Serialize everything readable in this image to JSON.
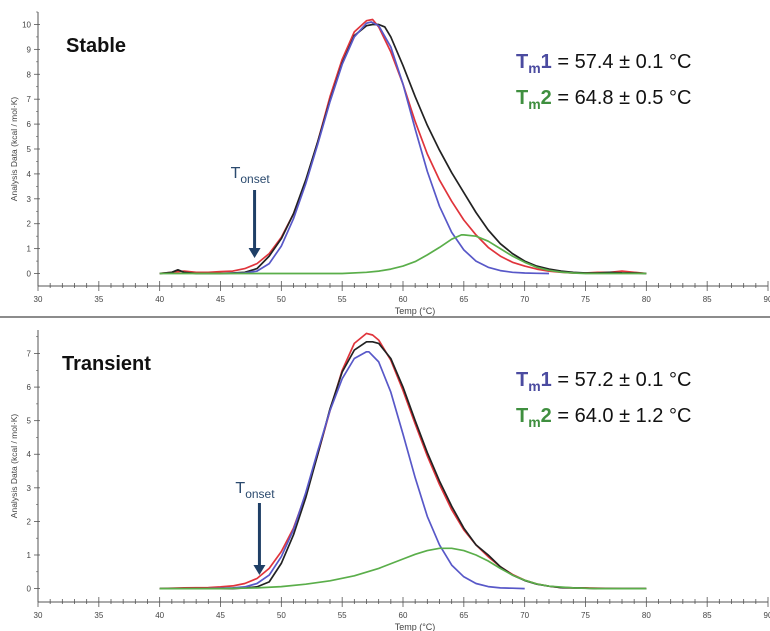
{
  "chart_data": [
    {
      "type": "line",
      "panel_label": "Stable",
      "xlabel": "Temp (°C)",
      "ylabel": "Analysis Data (kcal / mol·K)",
      "xlim": [
        30,
        90
      ],
      "ylim": [
        -0.5,
        10.5
      ],
      "x_ticks": [
        "30",
        "35",
        "40",
        "45",
        "50",
        "55",
        "60",
        "65",
        "70",
        "75",
        "80",
        "85",
        "90"
      ],
      "y_ticks": [
        "0",
        "1",
        "2",
        "3",
        "4",
        "5",
        "6",
        "7",
        "8",
        "9",
        "10"
      ],
      "tm1": {
        "label_main": "T",
        "label_sub": "m",
        "label_num": "1",
        "text": " = 57.4 ± 0.1 °C",
        "color": "#4b4ba0"
      },
      "tm2": {
        "label_main": "T",
        "label_sub": "m",
        "label_num": "2",
        "text": " = 64.8 ± 0.5 °C",
        "color": "#3f8f3f"
      },
      "onset": {
        "label_main": "T",
        "label_sub": "onset",
        "x": 47.8
      },
      "series": [
        {
          "color": "#e0343b",
          "x": [
            40,
            41,
            42,
            43,
            44,
            45,
            46,
            47,
            48,
            49,
            50,
            51,
            52,
            53,
            54,
            55,
            56,
            57,
            57.5,
            58,
            59,
            60,
            61,
            62,
            63,
            64,
            65,
            66,
            67,
            68,
            69,
            70,
            71,
            72,
            73,
            74,
            75,
            76,
            77,
            78,
            79,
            80
          ],
          "y": [
            0,
            0.05,
            0.1,
            0.05,
            0.05,
            0.08,
            0.1,
            0.2,
            0.4,
            0.8,
            1.45,
            2.4,
            3.7,
            5.3,
            7.1,
            8.6,
            9.7,
            10.15,
            10.2,
            9.9,
            8.9,
            7.6,
            6.1,
            4.8,
            3.75,
            2.9,
            2.15,
            1.55,
            1.05,
            0.7,
            0.45,
            0.3,
            0.18,
            0.1,
            0.05,
            0.02,
            0.02,
            0.05,
            0.05,
            0.1,
            0.05,
            0.0
          ]
        },
        {
          "color": "#222222",
          "x": [
            40,
            41,
            41.5,
            42,
            43,
            44,
            45,
            46,
            47,
            48,
            49,
            50,
            51,
            52,
            53,
            54,
            55,
            56,
            57,
            57.5,
            58,
            58.5,
            59,
            60,
            61,
            62,
            63,
            64,
            65,
            66,
            67,
            68,
            69,
            70,
            71,
            72,
            73,
            74,
            75,
            76,
            77,
            78,
            79,
            80
          ],
          "y": [
            0,
            0.05,
            0.15,
            0.05,
            0,
            0,
            0,
            0.02,
            0.05,
            0.2,
            0.7,
            1.4,
            2.4,
            3.75,
            5.3,
            6.95,
            8.45,
            9.55,
            9.95,
            10.0,
            10.0,
            9.9,
            9.5,
            8.35,
            7.1,
            5.95,
            4.95,
            4.05,
            3.25,
            2.45,
            1.75,
            1.2,
            0.8,
            0.5,
            0.3,
            0.18,
            0.1,
            0.05,
            0.02,
            0.02,
            0.05,
            0.03,
            0.02,
            0.0
          ]
        },
        {
          "color": "#5858c8",
          "x": [
            45,
            47,
            48,
            49,
            50,
            51,
            52,
            53,
            54,
            55,
            56,
            57,
            57.4,
            58,
            59,
            60,
            61,
            62,
            63,
            64,
            65,
            66,
            67,
            68,
            69,
            70,
            71,
            72
          ],
          "y": [
            0,
            0.02,
            0.1,
            0.4,
            1.1,
            2.2,
            3.6,
            5.2,
            6.9,
            8.4,
            9.5,
            10.05,
            10.1,
            9.95,
            9.1,
            7.6,
            5.8,
            4.1,
            2.7,
            1.65,
            0.95,
            0.5,
            0.25,
            0.12,
            0.05,
            0.02,
            0.01,
            0.0
          ]
        },
        {
          "color": "#5aae4a",
          "x": [
            40,
            48,
            52,
            55,
            57,
            58,
            59,
            60,
            61,
            62,
            63,
            64,
            64.8,
            65,
            66,
            67,
            68,
            69,
            70,
            71,
            72,
            73,
            74,
            75,
            80
          ],
          "y": [
            0,
            0,
            0,
            0,
            0.05,
            0.1,
            0.18,
            0.3,
            0.48,
            0.75,
            1.05,
            1.38,
            1.55,
            1.55,
            1.5,
            1.3,
            1.0,
            0.7,
            0.45,
            0.25,
            0.13,
            0.06,
            0.02,
            0.0,
            0.0
          ]
        }
      ]
    },
    {
      "type": "line",
      "panel_label": "Transient",
      "xlabel": "Temp (°C)",
      "ylabel": "Analysis Data (kcal / mol·K)",
      "xlim": [
        30,
        90
      ],
      "ylim": [
        -0.4,
        7.7
      ],
      "x_ticks": [
        "30",
        "35",
        "40",
        "45",
        "50",
        "55",
        "60",
        "65",
        "70",
        "75",
        "80",
        "85",
        "90"
      ],
      "y_ticks": [
        "0",
        "1",
        "2",
        "3",
        "4",
        "5",
        "6",
        "7"
      ],
      "tm1": {
        "label_main": "T",
        "label_sub": "m",
        "label_num": "1",
        "text": " = 57.2 ± 0.1 °C",
        "color": "#4b4ba0"
      },
      "tm2": {
        "label_main": "T",
        "label_sub": "m",
        "label_num": "2",
        "text": " = 64.0 ± 1.2 °C",
        "color": "#3f8f3f"
      },
      "onset": {
        "label_main": "T",
        "label_sub": "onset",
        "x": 48.2
      },
      "series": [
        {
          "color": "#e0343b",
          "x": [
            40,
            42,
            44,
            45,
            46,
            47,
            48,
            49,
            50,
            51,
            52,
            53,
            54,
            55,
            56,
            57,
            57.5,
            58,
            59,
            60,
            61,
            62,
            63,
            64,
            65,
            66,
            67,
            68,
            69,
            70,
            71,
            72,
            73,
            74,
            75,
            76,
            78,
            80
          ],
          "y": [
            0,
            0.02,
            0.03,
            0.05,
            0.08,
            0.15,
            0.3,
            0.6,
            1.1,
            1.8,
            2.8,
            4.0,
            5.3,
            6.5,
            7.3,
            7.6,
            7.55,
            7.4,
            6.8,
            5.9,
            4.9,
            3.95,
            3.1,
            2.35,
            1.75,
            1.3,
            0.95,
            0.65,
            0.42,
            0.25,
            0.14,
            0.07,
            0.03,
            0.02,
            0.02,
            0.01,
            0.0,
            0.0
          ]
        },
        {
          "color": "#222222",
          "x": [
            40,
            42,
            44,
            46,
            47,
            48,
            49,
            50,
            51,
            52,
            53,
            54,
            55,
            56,
            57,
            57.5,
            58,
            59,
            60,
            61,
            62,
            63,
            64,
            65,
            66,
            67,
            68,
            69,
            70,
            71,
            72,
            73,
            74,
            75,
            76,
            78,
            80
          ],
          "y": [
            0,
            0,
            0,
            0,
            0.02,
            0.05,
            0.2,
            0.75,
            1.6,
            2.7,
            4.0,
            5.35,
            6.45,
            7.1,
            7.35,
            7.35,
            7.3,
            6.85,
            6.0,
            5.0,
            4.05,
            3.2,
            2.45,
            1.8,
            1.3,
            1.0,
            0.65,
            0.4,
            0.24,
            0.13,
            0.07,
            0.03,
            0.02,
            0.01,
            0.0,
            0.0,
            0.0
          ]
        },
        {
          "color": "#5858c8",
          "x": [
            44,
            46,
            47,
            48,
            49,
            50,
            51,
            52,
            53,
            54,
            55,
            56,
            57,
            57.2,
            58,
            59,
            60,
            61,
            62,
            63,
            64,
            65,
            66,
            67,
            68,
            69,
            70
          ],
          "y": [
            0,
            0.02,
            0.05,
            0.15,
            0.4,
            0.95,
            1.75,
            2.85,
            4.1,
            5.3,
            6.25,
            6.85,
            7.05,
            7.05,
            6.75,
            5.85,
            4.6,
            3.3,
            2.15,
            1.3,
            0.7,
            0.35,
            0.15,
            0.06,
            0.02,
            0.01,
            0.0
          ]
        },
        {
          "color": "#5aae4a",
          "x": [
            40,
            45,
            48,
            50,
            52,
            54,
            56,
            58,
            60,
            61,
            62,
            63,
            64,
            65,
            66,
            67,
            68,
            69,
            70,
            71,
            72,
            74,
            76,
            80
          ],
          "y": [
            0,
            0,
            0.02,
            0.06,
            0.13,
            0.23,
            0.38,
            0.6,
            0.88,
            1.02,
            1.13,
            1.2,
            1.2,
            1.13,
            1.0,
            0.82,
            0.6,
            0.4,
            0.25,
            0.14,
            0.07,
            0.02,
            0.0,
            0.0
          ]
        }
      ]
    }
  ]
}
